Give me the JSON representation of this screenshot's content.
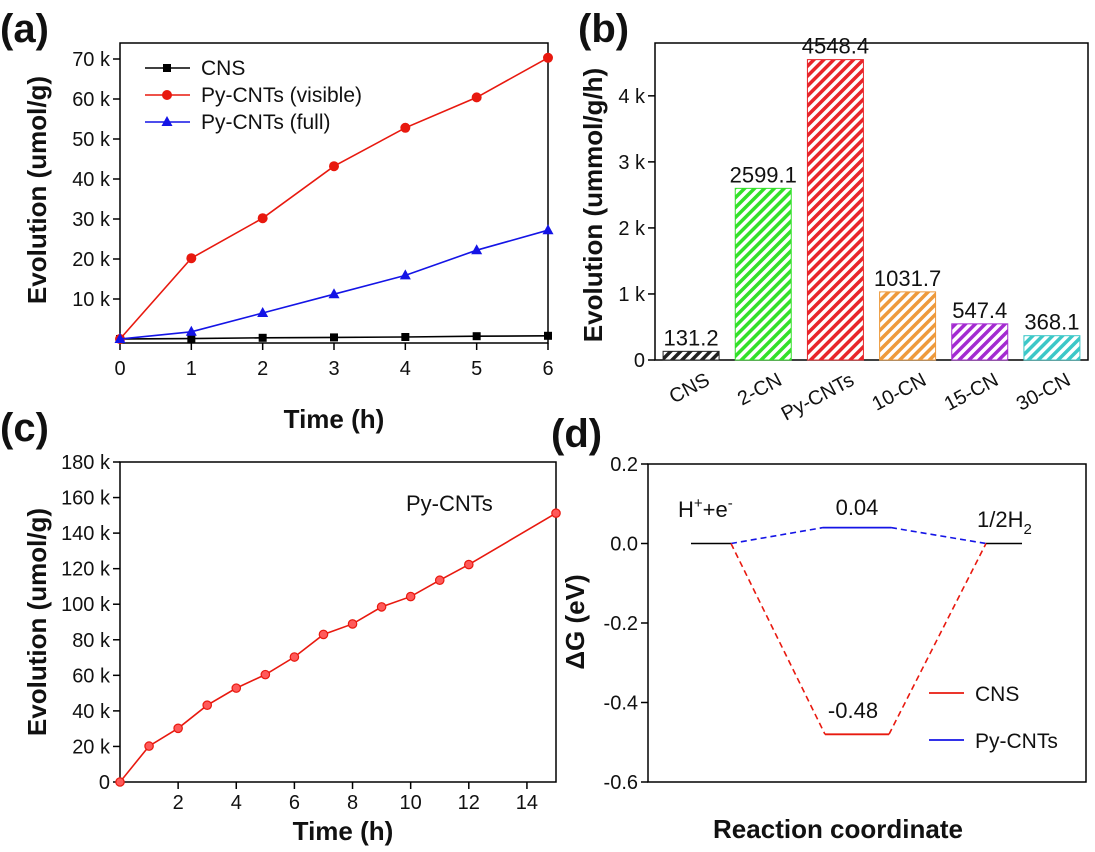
{
  "chart_data": [
    {
      "panel_label": "(a)",
      "type": "line",
      "xlabel": "Time (h)",
      "ylabel": "Evolution (umol/g)",
      "xlim": [
        0,
        6
      ],
      "ylim": [
        -1000,
        74000
      ],
      "x_ticks": [
        0,
        1,
        2,
        3,
        4,
        5,
        6
      ],
      "x_tick_labels": [
        "0",
        "1",
        "2",
        "3",
        "4",
        "5",
        "6"
      ],
      "y_ticks": [
        10000,
        20000,
        30000,
        40000,
        50000,
        60000,
        70000
      ],
      "y_tick_labels": [
        "10 k",
        "20 k",
        "30 k",
        "40 k",
        "50 k",
        "60 k",
        "70 k"
      ],
      "legend_position": "top-left",
      "grid": false,
      "series": [
        {
          "name": "CNS",
          "color": "#000000",
          "marker": "square",
          "x": [
            0,
            1,
            2,
            3,
            4,
            5,
            6
          ],
          "y": [
            0,
            100,
            300,
            400,
            500,
            700,
            800
          ]
        },
        {
          "name": "Py-CNTs (visible)",
          "color": "#e8190f",
          "marker": "circle",
          "x": [
            0,
            1,
            2,
            3,
            4,
            5,
            6
          ],
          "y": [
            0,
            20200,
            30200,
            43200,
            52800,
            60400,
            70300
          ]
        },
        {
          "name": "Py-CNTs (full)",
          "color": "#1414e6",
          "marker": "triangle",
          "x": [
            0,
            1,
            2,
            3,
            4,
            5,
            6
          ],
          "y": [
            0,
            1800,
            6500,
            11200,
            15900,
            22200,
            27200
          ]
        }
      ]
    },
    {
      "panel_label": "(b)",
      "type": "bar",
      "xlabel": "",
      "ylabel": "Evolution (ummol/g/h)",
      "ylim": [
        0,
        4800
      ],
      "y_ticks": [
        0,
        1000,
        2000,
        3000,
        4000
      ],
      "y_tick_labels": [
        "0",
        "1 k",
        "2 k",
        "3 k",
        "4 k"
      ],
      "categories": [
        "CNS",
        "2-CN",
        "Py-CNTs",
        "10-CN",
        "15-CN",
        "30-CN"
      ],
      "values": [
        131.2,
        2599.1,
        4548.4,
        1031.7,
        547.4,
        368.1
      ],
      "data_labels": [
        "131.2",
        "2599.1",
        "4548.4",
        "1031.7",
        "547.4",
        "368.1"
      ],
      "colors": [
        "#222222",
        "#33e02a",
        "#e8252a",
        "#ee9a3c",
        "#a42bd1",
        "#3cc8c8"
      ],
      "fill_pattern": "diagonal-hatch"
    },
    {
      "panel_label": "(c)",
      "type": "line",
      "xlabel": "Time (h)",
      "ylabel": "Evolution (umol/g)",
      "xlim": [
        0,
        15
      ],
      "ylim": [
        0,
        180000
      ],
      "x_ticks": [
        2,
        4,
        6,
        8,
        10,
        12,
        14
      ],
      "x_tick_labels": [
        "2",
        "4",
        "6",
        "8",
        "10",
        "12",
        "14"
      ],
      "y_ticks": [
        0,
        20000,
        40000,
        60000,
        80000,
        100000,
        120000,
        140000,
        160000,
        180000
      ],
      "y_tick_labels": [
        "0",
        "20 k",
        "40 k",
        "60 k",
        "80 k",
        "100 k",
        "120 k",
        "140 k",
        "160 k",
        "180 k"
      ],
      "annotation": "Py-CNTs",
      "grid": false,
      "series": [
        {
          "name": "Py-CNTs",
          "color": "#e8190f",
          "marker": "circle",
          "x": [
            0,
            1,
            2,
            3,
            4,
            5,
            6,
            7,
            8,
            9,
            10,
            11,
            12,
            15
          ],
          "y": [
            0,
            20200,
            30200,
            43200,
            52800,
            60400,
            70300,
            83000,
            88900,
            98500,
            104300,
            113500,
            122300,
            151200
          ]
        }
      ]
    },
    {
      "panel_label": "(d)",
      "type": "line",
      "xlabel": "Reaction coordinate",
      "ylabel": "ΔG (eV)",
      "ylim": [
        -0.6,
        0.2
      ],
      "y_ticks": [
        -0.6,
        -0.4,
        -0.2,
        0.0,
        0.2
      ],
      "y_tick_labels": [
        "-0.6",
        "-0.4",
        "-0.2",
        "0.0",
        "0.2"
      ],
      "legend_position": "bottom-right",
      "state_labels": {
        "initial": "H",
        "initial_sup1": "+",
        "initial_mid": "+e",
        "initial_sup2": "-",
        "final": "1/2H",
        "final_sub": "2"
      },
      "levels": {
        "reference": 0.0,
        "Py-CNTs": 0.04,
        "CNS": -0.48
      },
      "value_labels": {
        "Py-CNTs": "0.04",
        "CNS": "-0.48"
      },
      "series": [
        {
          "name": "CNS",
          "color": "#e8190f"
        },
        {
          "name": "Py-CNTs",
          "color": "#1414e6"
        }
      ]
    }
  ]
}
